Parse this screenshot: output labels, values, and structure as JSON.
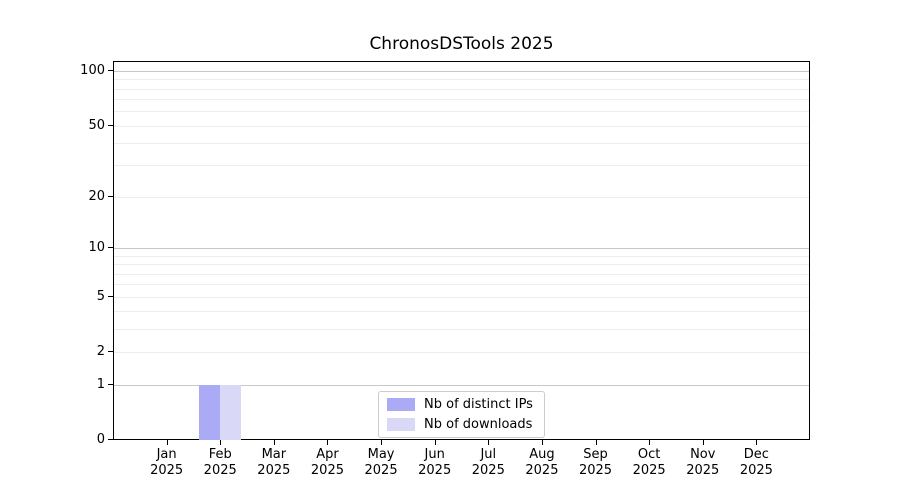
{
  "chart_data": {
    "type": "bar",
    "title": "ChronosDSTools 2025",
    "x_year": "2025",
    "categories": [
      "Jan",
      "Feb",
      "Mar",
      "Apr",
      "May",
      "Jun",
      "Jul",
      "Aug",
      "Sep",
      "Oct",
      "Nov",
      "Dec"
    ],
    "series": [
      {
        "name": "Nb of distinct IPs",
        "color": "#aaaaf5",
        "values": [
          0,
          1,
          0,
          0,
          0,
          0,
          0,
          0,
          0,
          0,
          0,
          0
        ]
      },
      {
        "name": "Nb of downloads",
        "color": "#d9d9f7",
        "values": [
          0,
          1,
          0,
          0,
          0,
          0,
          0,
          0,
          0,
          0,
          0,
          0
        ]
      }
    ],
    "y_axis": {
      "scale": "log1p",
      "tick_values": [
        0,
        1,
        2,
        5,
        10,
        20,
        50,
        100
      ],
      "tick_labels": [
        "0",
        "1",
        "2",
        "5",
        "10",
        "20",
        "50",
        "100"
      ],
      "major_gridlines": [
        1,
        10,
        100
      ],
      "minor_gridlines": [
        2,
        3,
        4,
        5,
        6,
        7,
        8,
        9,
        20,
        30,
        40,
        50,
        60,
        70,
        80,
        90
      ],
      "range_top_value": 113
    },
    "legend": {
      "position": "lower-center"
    },
    "grid": "horizontal",
    "colors": {
      "major_grid": "#c8c8c8",
      "minor_grid": "#ededed",
      "spine": "#000000",
      "text": "#000000",
      "background": "#ffffff"
    }
  }
}
